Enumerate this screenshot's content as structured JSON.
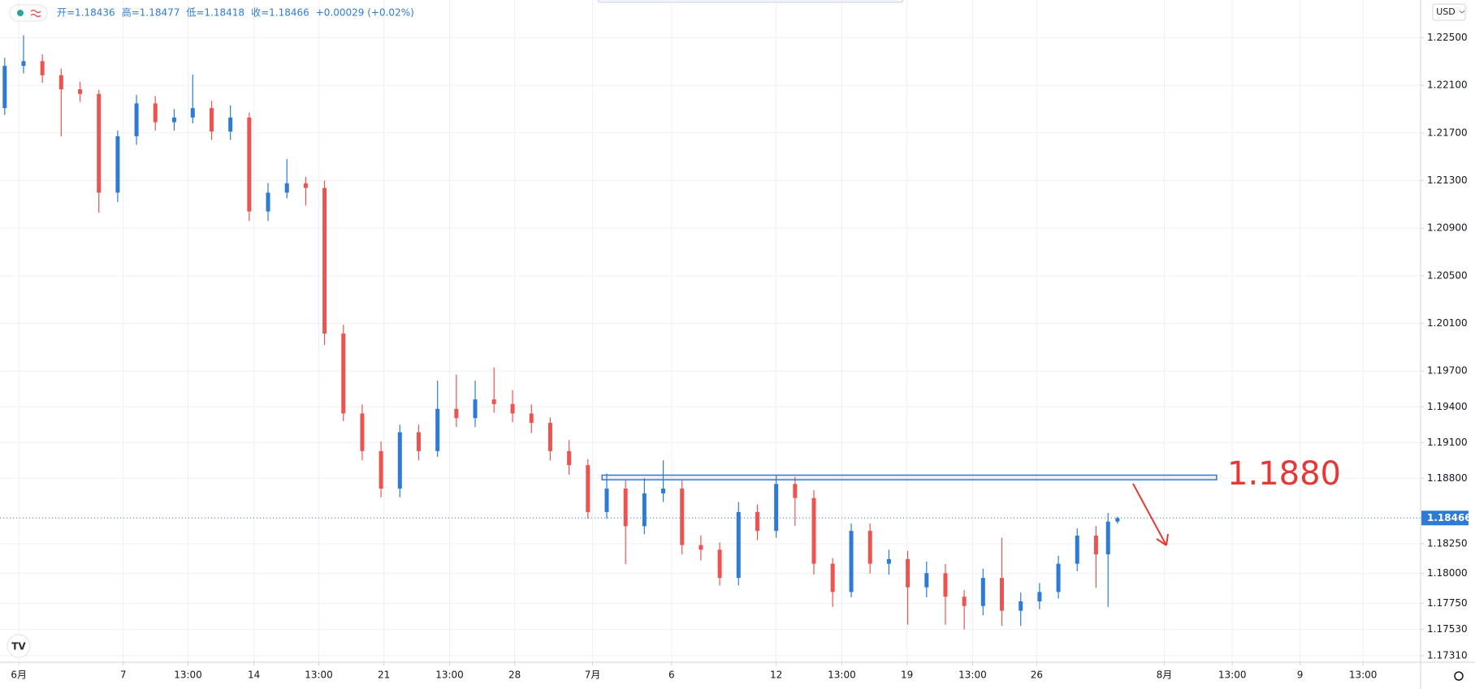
{
  "currency": "USD",
  "header": [
    "开=1.18436",
    "高=1.18477",
    "低=1.18418",
    "收=1.18466",
    "+0.00029 (+0.02%)"
  ],
  "chart_data": {
    "type": "candlestick",
    "up_color": "#2e7bd6",
    "down_color": "#ef5350",
    "grid": true,
    "xlim": [
      -0.72,
      53.6
    ],
    "ylim": [
      1.17255,
      1.22816
    ],
    "xticks": [
      {
        "value": 0,
        "label": "6月"
      },
      {
        "value": 3.99,
        "label": "7"
      },
      {
        "value": 6.47,
        "label": "13:00"
      },
      {
        "value": 8.99,
        "label": "14"
      },
      {
        "value": 11.47,
        "label": "13:00"
      },
      {
        "value": 13.96,
        "label": "21"
      },
      {
        "value": 16.47,
        "label": "13:00"
      },
      {
        "value": 18.96,
        "label": "28"
      },
      {
        "value": 21.94,
        "label": "7月"
      },
      {
        "value": 24.96,
        "label": "6"
      },
      {
        "value": 28.96,
        "label": "12"
      },
      {
        "value": 31.47,
        "label": "13:00"
      },
      {
        "value": 33.96,
        "label": "19"
      },
      {
        "value": 36.47,
        "label": "13:00"
      },
      {
        "value": 38.92,
        "label": "26"
      },
      {
        "value": 43.8,
        "label": "8月"
      },
      {
        "value": 46.4,
        "label": "13:00"
      },
      {
        "value": 48.99,
        "label": "9"
      },
      {
        "value": 51.4,
        "label": "13:00"
      }
    ],
    "yticks": [
      {
        "value": 1.225,
        "label": "1.22500"
      },
      {
        "value": 1.221,
        "label": "1.22100"
      },
      {
        "value": 1.217,
        "label": "1.21700"
      },
      {
        "value": 1.213,
        "label": "1.21300"
      },
      {
        "value": 1.209,
        "label": "1.20900"
      },
      {
        "value": 1.205,
        "label": "1.20500"
      },
      {
        "value": 1.201,
        "label": "1.20100"
      },
      {
        "value": 1.197,
        "label": "1.19700"
      },
      {
        "value": 1.194,
        "label": "1.19400"
      },
      {
        "value": 1.191,
        "label": "1.19100"
      },
      {
        "value": 1.188,
        "label": "1.18800"
      },
      {
        "value": 1.1825,
        "label": "1.18250"
      },
      {
        "value": 1.18,
        "label": "1.18000"
      },
      {
        "value": 1.1775,
        "label": "1.17750"
      },
      {
        "value": 1.1753,
        "label": "1.17530"
      },
      {
        "value": 1.1731,
        "label": "1.17310"
      }
    ],
    "x": [
      -0.54,
      0.18,
      0.9,
      1.62,
      2.34,
      3.06,
      3.78,
      4.5,
      5.22,
      5.94,
      6.65,
      7.37,
      8.09,
      8.81,
      9.53,
      10.25,
      10.97,
      11.69,
      12.41,
      13.13,
      13.85,
      14.57,
      15.29,
      16.01,
      16.73,
      17.45,
      18.17,
      18.88,
      19.6,
      20.32,
      21.04,
      21.76,
      22.48,
      23.2,
      23.92,
      24.64,
      25.36,
      26.08,
      26.8,
      27.52,
      28.24,
      28.96,
      29.68,
      30.4,
      31.12,
      31.83,
      32.55,
      33.27,
      33.99,
      34.71,
      35.43,
      36.15,
      36.87,
      37.59,
      38.31,
      39.03,
      39.75,
      40.47,
      41.19,
      41.65,
      42.01
    ],
    "open": [
      1.21908,
      1.22263,
      1.22303,
      1.22184,
      1.22066,
      1.22027,
      1.21198,
      1.21672,
      1.21948,
      1.2179,
      1.21829,
      1.21908,
      1.21711,
      1.21829,
      1.2104,
      1.21198,
      1.21277,
      1.21238,
      1.20015,
      1.19344,
      1.19028,
      1.18713,
      1.19186,
      1.19028,
      1.19383,
      1.19305,
      1.19462,
      1.19423,
      1.19344,
      1.19265,
      1.19028,
      1.1891,
      1.18516,
      1.18713,
      1.18397,
      1.18673,
      1.18713,
      1.18239,
      1.182,
      1.17963,
      1.18516,
      1.18358,
      1.18752,
      1.18634,
      1.18082,
      1.17845,
      1.18358,
      1.18082,
      1.18121,
      1.17884,
      1.18003,
      1.17805,
      1.17727,
      1.17963,
      1.17687,
      1.17766,
      1.17845,
      1.18082,
      1.18318,
      1.18161,
      1.18436
    ],
    "high": [
      1.2233,
      1.2252,
      1.2236,
      1.2224,
      1.2213,
      1.2206,
      1.2172,
      1.2202,
      1.2201,
      1.219,
      1.2219,
      1.2197,
      1.2193,
      1.2187,
      1.2128,
      1.2148,
      1.2133,
      1.213,
      1.2009,
      1.1942,
      1.1911,
      1.1925,
      1.1925,
      1.1962,
      1.1967,
      1.1962,
      1.1973,
      1.1954,
      1.1942,
      1.1931,
      1.1912,
      1.1896,
      1.1884,
      1.1878,
      1.188,
      1.1895,
      1.1878,
      1.1832,
      1.1826,
      1.186,
      1.1858,
      1.1883,
      1.1881,
      1.187,
      1.1813,
      1.1842,
      1.1842,
      1.182,
      1.1819,
      1.181,
      1.1808,
      1.1786,
      1.1804,
      1.183,
      1.1784,
      1.1792,
      1.1815,
      1.1838,
      1.184,
      1.1851,
      1.18477
    ],
    "low": [
      1.2185,
      1.222,
      1.2212,
      1.2167,
      1.2196,
      1.2103,
      1.2112,
      1.216,
      1.2172,
      1.2172,
      1.2178,
      1.2164,
      1.2164,
      1.2096,
      1.2096,
      1.2115,
      1.2109,
      1.1992,
      1.1928,
      1.1895,
      1.1864,
      1.1864,
      1.1895,
      1.1898,
      1.1923,
      1.1923,
      1.1935,
      1.1927,
      1.1918,
      1.1895,
      1.1883,
      1.1846,
      1.1846,
      1.1808,
      1.1833,
      1.186,
      1.1816,
      1.1811,
      1.179,
      1.179,
      1.1828,
      1.183,
      1.184,
      1.1799,
      1.1772,
      1.178,
      1.18,
      1.1799,
      1.1757,
      1.178,
      1.1757,
      1.1753,
      1.1765,
      1.1756,
      1.1756,
      1.177,
      1.1779,
      1.1802,
      1.1788,
      1.1772,
      1.18418
    ],
    "close": [
      1.22263,
      1.22303,
      1.22184,
      1.22066,
      1.22027,
      1.21198,
      1.21672,
      1.21948,
      1.2179,
      1.21829,
      1.21908,
      1.21711,
      1.21829,
      1.2104,
      1.21198,
      1.21277,
      1.21238,
      1.20015,
      1.19344,
      1.19028,
      1.18713,
      1.19186,
      1.19028,
      1.19383,
      1.19305,
      1.19462,
      1.19423,
      1.19344,
      1.19265,
      1.19028,
      1.1891,
      1.18516,
      1.18713,
      1.18397,
      1.18673,
      1.18713,
      1.18239,
      1.182,
      1.17963,
      1.18516,
      1.18358,
      1.18752,
      1.18634,
      1.18082,
      1.17845,
      1.18358,
      1.18082,
      1.18121,
      1.17884,
      1.18003,
      1.17805,
      1.17727,
      1.17963,
      1.17687,
      1.17766,
      1.17845,
      1.18082,
      1.18318,
      1.18161,
      1.18436,
      1.18466
    ],
    "zone": {
      "x": [
        22.3,
        45.8
      ],
      "low": 1.18787,
      "high": 1.18826,
      "color": "#2e7bd6"
    },
    "annotation": {
      "text": "1.1880",
      "color": "#e53935"
    }
  }
}
